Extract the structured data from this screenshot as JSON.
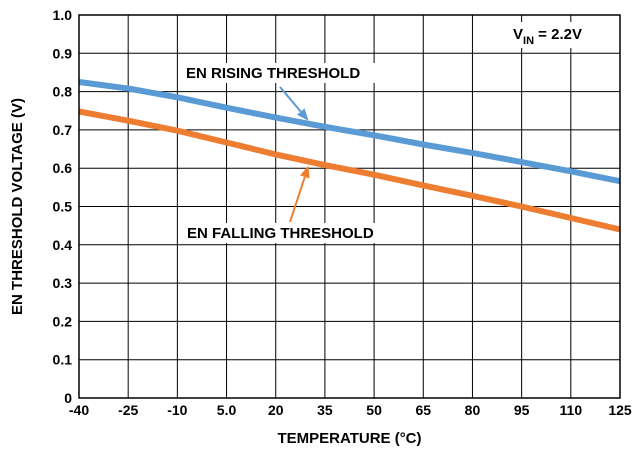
{
  "chart_data": {
    "type": "line",
    "title": "",
    "xlabel": "TEMPERATURE (°C)",
    "ylabel": "EN THRESHOLD VOLTAGE (V)",
    "xlim": [
      -40,
      125
    ],
    "ylim": [
      0,
      1.0
    ],
    "x_ticks": [
      "-40",
      "-25",
      "-10",
      "5.0",
      "20",
      "35",
      "50",
      "65",
      "80",
      "95",
      "110",
      "125"
    ],
    "y_ticks": [
      "0",
      "0.1",
      "0.2",
      "0.3",
      "0.4",
      "0.5",
      "0.6",
      "0.7",
      "0.8",
      "0.9",
      "1.0"
    ],
    "grid": true,
    "condition": {
      "prefix": "V",
      "sub": "IN",
      "suffix": " = 2.2V"
    },
    "x": [
      -40,
      -25,
      -10,
      5,
      20,
      35,
      50,
      65,
      80,
      95,
      110,
      125
    ],
    "series": [
      {
        "name": "EN RISING THRESHOLD",
        "color": "#5b9bd5",
        "values": [
          0.825,
          0.808,
          0.785,
          0.758,
          0.732,
          0.708,
          0.686,
          0.662,
          0.64,
          0.616,
          0.592,
          0.566
        ]
      },
      {
        "name": "EN FALLING THRESHOLD",
        "color": "#ed7d31",
        "values": [
          0.748,
          0.724,
          0.698,
          0.667,
          0.636,
          0.608,
          0.583,
          0.555,
          0.528,
          0.5,
          0.47,
          0.44
        ]
      }
    ],
    "annotations": [
      {
        "text": "EN RISING THRESHOLD",
        "series": 0,
        "point_x": 30
      },
      {
        "text": "EN FALLING THRESHOLD",
        "series": 1,
        "point_x": 30
      }
    ]
  }
}
